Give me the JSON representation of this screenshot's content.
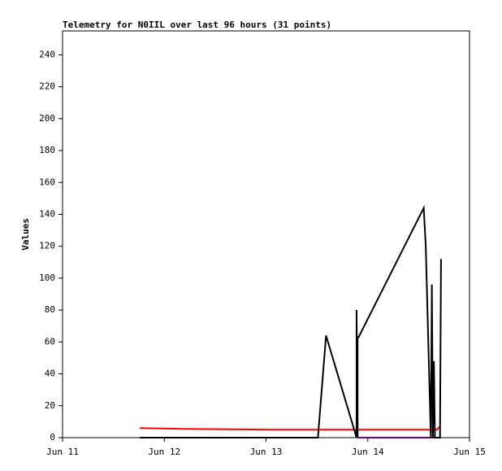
{
  "chart_data": {
    "type": "line",
    "title": "Telemetry for N0IIL over last 96 hours (31 points)",
    "y_label": "Values",
    "xlim": [
      0,
      4
    ],
    "xticks": [
      {
        "value": 0,
        "label": "Jun 11"
      },
      {
        "value": 1,
        "label": "Jun 12"
      },
      {
        "value": 2,
        "label": "Jun 13"
      },
      {
        "value": 3,
        "label": "Jun 14"
      },
      {
        "value": 4,
        "label": "Jun 15"
      }
    ],
    "ylim": [
      0,
      255
    ],
    "yticks": [
      0,
      20,
      40,
      60,
      80,
      100,
      120,
      140,
      160,
      180,
      200,
      220,
      240
    ],
    "series": [
      {
        "color": "#ff0000",
        "x": [
          0.76,
          1.2,
          2.07,
          3.68,
          3.71
        ],
        "values": [
          6,
          5.5,
          5,
          5,
          7
        ]
      },
      {
        "color": "#800080",
        "x": [
          2.9,
          3.7
        ],
        "values": [
          0,
          0
        ]
      },
      {
        "color": "#000000",
        "x": [
          0.76,
          2.51,
          2.59,
          2.89,
          2.89,
          2.9,
          2.9,
          2.91,
          3.55,
          3.57,
          3.62,
          3.63,
          3.64,
          3.65,
          3.66,
          3.71,
          3.72
        ],
        "values": [
          0,
          0,
          64,
          0,
          80,
          0,
          63,
          63,
          144,
          120,
          0,
          96,
          0,
          48,
          0,
          0,
          112
        ]
      }
    ]
  }
}
